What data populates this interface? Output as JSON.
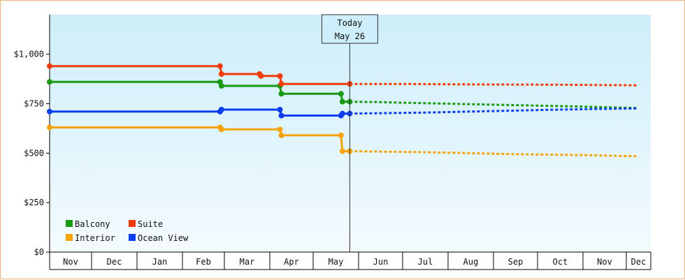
{
  "chart_data": {
    "type": "line",
    "title": "",
    "xlabel": "",
    "ylabel": "",
    "ylim": [
      0,
      1200
    ],
    "y_ticks": [
      {
        "value": 0,
        "label": "$0"
      },
      {
        "value": 250,
        "label": "$250"
      },
      {
        "value": 500,
        "label": "$500"
      },
      {
        "value": 750,
        "label": "$750"
      },
      {
        "value": 1000,
        "label": "$1,000"
      }
    ],
    "months": [
      "Nov",
      "Dec",
      "Jan",
      "Feb",
      "Mar",
      "Apr",
      "May",
      "Jun",
      "Jul",
      "Aug",
      "Sep",
      "Oct",
      "Nov",
      "Dec"
    ],
    "today": {
      "line1": "Today",
      "line2": "May 26",
      "date": "2024-05-26"
    },
    "legend_placement": "bottom-left",
    "grid": false,
    "colors": {
      "background_top": "#cdeefa",
      "background_bottom": "#f4fbfe",
      "border": "#e8b27a"
    },
    "series": [
      {
        "name": "Balcony",
        "color": "#1a9a12",
        "history": [
          {
            "date": "2023-11-01",
            "value": 860
          },
          {
            "date": "2024-02-27",
            "value": 860
          },
          {
            "date": "2024-02-28",
            "value": 840
          },
          {
            "date": "2024-04-08",
            "value": 840
          },
          {
            "date": "2024-04-09",
            "value": 800
          },
          {
            "date": "2024-05-20",
            "value": 800
          },
          {
            "date": "2024-05-21",
            "value": 760
          },
          {
            "date": "2024-05-26",
            "value": 760
          }
        ],
        "forecast": [
          {
            "date": "2024-05-26",
            "value": 760
          },
          {
            "date": "2024-06-15",
            "value": 758
          },
          {
            "date": "2024-07-01",
            "value": 755
          },
          {
            "date": "2024-08-01",
            "value": 750
          },
          {
            "date": "2024-09-01",
            "value": 745
          },
          {
            "date": "2024-10-01",
            "value": 740
          },
          {
            "date": "2024-11-01",
            "value": 735
          },
          {
            "date": "2024-12-15",
            "value": 728
          }
        ]
      },
      {
        "name": "Suite",
        "color": "#f03c0a",
        "history": [
          {
            "date": "2023-11-01",
            "value": 940
          },
          {
            "date": "2024-02-27",
            "value": 940
          },
          {
            "date": "2024-02-28",
            "value": 900
          },
          {
            "date": "2024-03-25",
            "value": 900
          },
          {
            "date": "2024-03-26",
            "value": 890
          },
          {
            "date": "2024-04-08",
            "value": 890
          },
          {
            "date": "2024-04-09",
            "value": 850
          },
          {
            "date": "2024-05-26",
            "value": 850
          }
        ],
        "forecast": [
          {
            "date": "2024-05-26",
            "value": 850
          },
          {
            "date": "2024-07-01",
            "value": 850
          },
          {
            "date": "2024-08-01",
            "value": 848
          },
          {
            "date": "2024-09-01",
            "value": 847
          },
          {
            "date": "2024-10-15",
            "value": 846
          },
          {
            "date": "2024-12-15",
            "value": 843
          }
        ]
      },
      {
        "name": "Interior",
        "color": "#f5a30a",
        "history": [
          {
            "date": "2023-11-01",
            "value": 630
          },
          {
            "date": "2024-02-27",
            "value": 630
          },
          {
            "date": "2024-02-28",
            "value": 620
          },
          {
            "date": "2024-04-08",
            "value": 620
          },
          {
            "date": "2024-04-09",
            "value": 590
          },
          {
            "date": "2024-05-20",
            "value": 590
          },
          {
            "date": "2024-05-21",
            "value": 510
          },
          {
            "date": "2024-05-26",
            "value": 510
          }
        ],
        "forecast": [
          {
            "date": "2024-05-26",
            "value": 510
          },
          {
            "date": "2024-06-15",
            "value": 508
          },
          {
            "date": "2024-07-15",
            "value": 505
          },
          {
            "date": "2024-08-15",
            "value": 500
          },
          {
            "date": "2024-09-15",
            "value": 495
          },
          {
            "date": "2024-10-15",
            "value": 492
          },
          {
            "date": "2024-11-15",
            "value": 488
          },
          {
            "date": "2024-12-15",
            "value": 484
          }
        ]
      },
      {
        "name": "Ocean View",
        "color": "#0a3cf0",
        "history": [
          {
            "date": "2023-11-01",
            "value": 710
          },
          {
            "date": "2024-02-27",
            "value": 710
          },
          {
            "date": "2024-02-28",
            "value": 720
          },
          {
            "date": "2024-04-08",
            "value": 720
          },
          {
            "date": "2024-04-09",
            "value": 690
          },
          {
            "date": "2024-05-20",
            "value": 690
          },
          {
            "date": "2024-05-21",
            "value": 700
          },
          {
            "date": "2024-05-26",
            "value": 700
          }
        ],
        "forecast": [
          {
            "date": "2024-05-26",
            "value": 700
          },
          {
            "date": "2024-06-15",
            "value": 702
          },
          {
            "date": "2024-07-15",
            "value": 705
          },
          {
            "date": "2024-08-15",
            "value": 710
          },
          {
            "date": "2024-09-15",
            "value": 715
          },
          {
            "date": "2024-10-15",
            "value": 720
          },
          {
            "date": "2024-11-15",
            "value": 724
          },
          {
            "date": "2024-12-15",
            "value": 726
          }
        ]
      }
    ]
  }
}
